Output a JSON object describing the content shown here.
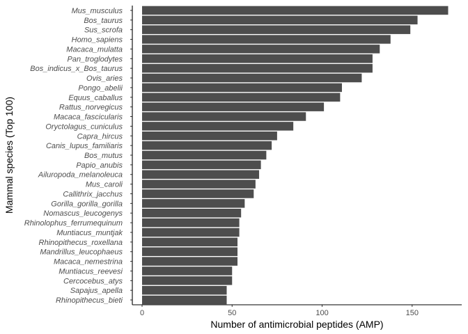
{
  "chart_data": {
    "type": "bar",
    "orientation": "horizontal",
    "title": "",
    "xlabel": "Number of antimicrobial peptides (AMP)",
    "ylabel": "Mammal species (Top 100)",
    "xlim": [
      0,
      170
    ],
    "xticks": [
      0,
      50,
      100,
      150
    ],
    "grid": false,
    "legend": "none",
    "bar_color": "#4d4d4d",
    "categories": [
      "Mus_musculus",
      "Bos_taurus",
      "Sus_scrofa",
      "Homo_sapiens",
      "Macaca_mulatta",
      "Pan_troglodytes",
      "Bos_indicus_x_Bos_taurus",
      "Ovis_aries",
      "Pongo_abelii",
      "Equus_caballus",
      "Rattus_norvegicus",
      "Macaca_fascicularis",
      "Oryctolagus_cuniculus",
      "Capra_hircus",
      "Canis_lupus_familiaris",
      "Bos_mutus",
      "Papio_anubis",
      "Ailuropoda_melanoleuca",
      "Mus_caroli",
      "Callithrix_jacchus",
      "Gorilla_gorilla_gorilla",
      "Nomascus_leucogenys",
      "Rhinolophus_ferrumequinum",
      "Muntiacus_muntjak",
      "Rhinopithecus_roxellana",
      "Mandrillus_leucophaeus",
      "Macaca_nemestrina",
      "Muntiacus_reevesi",
      "Cercocebus_atys",
      "Sapajus_apella",
      "Rhinopithecus_bieti"
    ],
    "values": [
      170,
      153,
      149,
      138,
      132,
      128,
      128,
      122,
      111,
      110,
      101,
      91,
      84,
      75,
      72,
      69,
      66,
      65,
      63,
      62,
      57,
      55,
      54,
      54,
      53,
      53,
      53,
      50,
      50,
      47,
      47
    ]
  }
}
